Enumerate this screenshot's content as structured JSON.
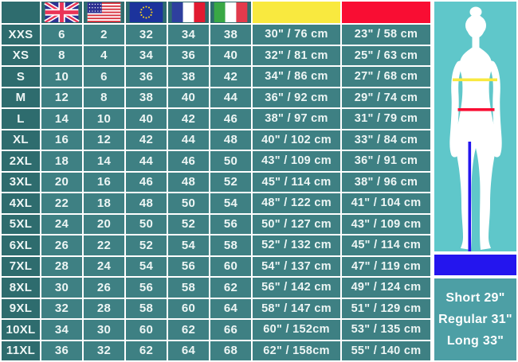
{
  "chart_data": {
    "type": "table",
    "header_icons": [
      "uk-flag",
      "usa-flag",
      "eu-flag",
      "france-flag",
      "italy-flag"
    ],
    "header_swatches": [
      "yellow-chest-swatch",
      "red-waist-swatch"
    ],
    "columns": [
      "size",
      "uk",
      "usa",
      "eu",
      "france",
      "italy",
      "chest-yellow",
      "waist-red"
    ],
    "rows": [
      [
        "XXS",
        "6",
        "2",
        "32",
        "34",
        "38",
        "30\" / 76 cm",
        "23\" / 58 cm"
      ],
      [
        "XS",
        "8",
        "4",
        "34",
        "36",
        "40",
        "32\" / 81 cm",
        "25\" / 63 cm"
      ],
      [
        "S",
        "10",
        "6",
        "36",
        "38",
        "42",
        "34\" / 86 cm",
        "27\" / 68 cm"
      ],
      [
        "M",
        "12",
        "8",
        "38",
        "40",
        "44",
        "36\" / 92 cm",
        "29\" / 74 cm"
      ],
      [
        "L",
        "14",
        "10",
        "40",
        "42",
        "46",
        "38\" / 97 cm",
        "31\" / 79 cm"
      ],
      [
        "XL",
        "16",
        "12",
        "42",
        "44",
        "48",
        "40\" / 102 cm",
        "33\" / 84 cm"
      ],
      [
        "2XL",
        "18",
        "14",
        "44",
        "46",
        "50",
        "43\" / 109 cm",
        "36\" / 91 cm"
      ],
      [
        "3XL",
        "20",
        "16",
        "46",
        "48",
        "52",
        "45\" / 114 cm",
        "38\" / 96 cm"
      ],
      [
        "4XL",
        "22",
        "18",
        "48",
        "50",
        "54",
        "48\" / 122 cm",
        "41\" / 104 cm"
      ],
      [
        "5XL",
        "24",
        "20",
        "50",
        "52",
        "56",
        "50\" / 127 cm",
        "43\" / 109 cm"
      ],
      [
        "6XL",
        "26",
        "22",
        "52",
        "54",
        "58",
        "52\" / 132 cm",
        "45\" / 114 cm"
      ],
      [
        "7XL",
        "28",
        "24",
        "54",
        "56",
        "60",
        "54\" / 137 cm",
        "47\" / 119 cm"
      ],
      [
        "8XL",
        "30",
        "26",
        "56",
        "58",
        "62",
        "56\" / 142 cm",
        "49\" / 124 cm"
      ],
      [
        "9XL",
        "32",
        "28",
        "58",
        "60",
        "64",
        "58\" / 147 cm",
        "51\" / 129 cm"
      ],
      [
        "10XL",
        "34",
        "30",
        "60",
        "62",
        "66",
        "60\" / 152cm",
        "53\" / 135 cm"
      ],
      [
        "11XL",
        "36",
        "32",
        "62",
        "64",
        "68",
        "62\" / 158cm",
        "55\" / 140 cm"
      ]
    ]
  },
  "figure": {
    "lengths": [
      "Short 29\"",
      "Regular 31\"",
      "Long 33\""
    ],
    "line_icons": [
      "yellow-chest-line",
      "red-waist-line",
      "blue-inseam-line"
    ]
  },
  "colors": {
    "label_cell": "#2e6c6e",
    "data_cell": "#3e8083",
    "header_yellow": "#f9e93f",
    "header_red": "#f90d33",
    "panel_teal": "#5fc7ca",
    "length_panel_teal": "#4d9fa5",
    "inseam_blue": "#2415ee",
    "text": "#eef6f5"
  }
}
